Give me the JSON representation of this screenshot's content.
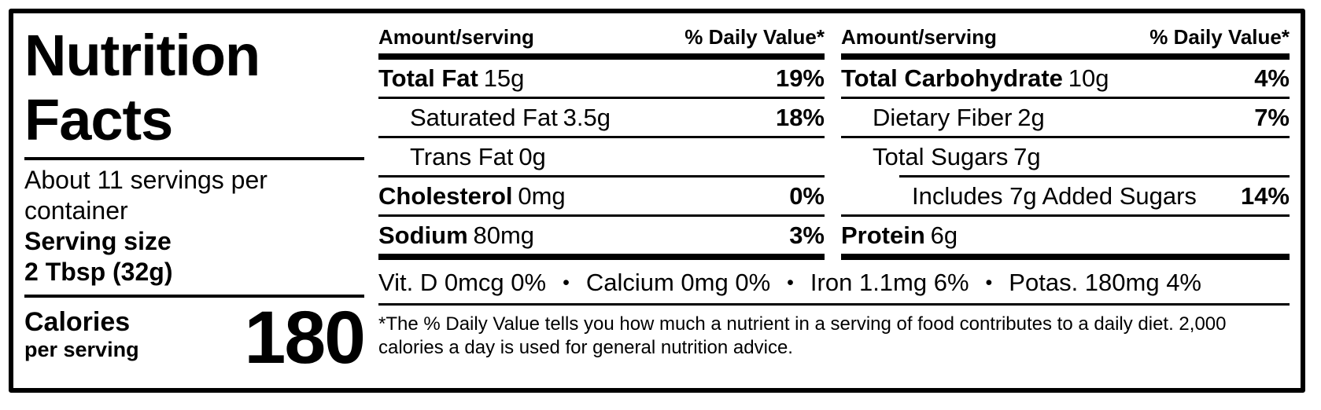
{
  "label": {
    "title": "Nutrition Facts",
    "servings_per_container": "About 11 servings per container",
    "serving_size_label": "Serving size",
    "serving_size_value": "2 Tbsp (32g)",
    "calories_label": "Calories",
    "calories_sublabel": "per serving",
    "calories_value": "180"
  },
  "columns": [
    {
      "header_amount": "Amount/serving",
      "header_dv": "% Daily Value*",
      "rows": [
        {
          "name": "Total Fat",
          "amount": "15g",
          "dv": "19%"
        },
        {
          "name": "Saturated Fat",
          "amount": "3.5g",
          "dv": "18%"
        },
        {
          "name": "Trans Fat",
          "amount": "0g",
          "dv": ""
        },
        {
          "name": "Cholesterol",
          "amount": "0mg",
          "dv": "0%"
        },
        {
          "name": "Sodium",
          "amount": "80mg",
          "dv": "3%"
        }
      ]
    },
    {
      "header_amount": "Amount/serving",
      "header_dv": "% Daily Value*",
      "rows": [
        {
          "name": "Total Carbohydrate",
          "amount": "10g",
          "dv": "4%"
        },
        {
          "name": "Dietary Fiber",
          "amount": "2g",
          "dv": "7%"
        },
        {
          "name": "Total Sugars",
          "amount": "7g",
          "dv": ""
        },
        {
          "name": "Includes 7g Added Sugars",
          "amount": "",
          "dv": "14%"
        },
        {
          "name": "Protein",
          "amount": "6g",
          "dv": ""
        }
      ]
    }
  ],
  "micronutrients": [
    "Vit. D 0mcg 0%",
    "Calcium 0mg 0%",
    "Iron 1.1mg 6%",
    "Potas. 180mg 4%"
  ],
  "footnote": "*The % Daily Value tells you how much a nutrient in a serving of food contributes to a daily diet. 2,000 calories a day is used for general nutrition advice.",
  "colors": {
    "ink": "#000000",
    "paper": "#ffffff"
  }
}
